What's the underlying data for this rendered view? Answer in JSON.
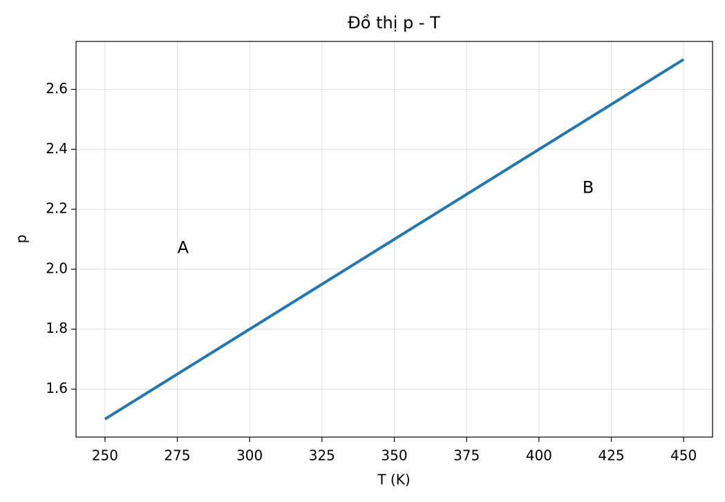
{
  "chart_data": {
    "type": "line",
    "title": "Đồ thị p - T",
    "xlabel": "T (K)",
    "ylabel": "p",
    "x": [
      250,
      450
    ],
    "series": [
      {
        "name": "p",
        "color": "#1f77b4",
        "values": [
          1.5,
          2.7
        ]
      }
    ],
    "xlim": [
      240,
      460
    ],
    "xticks": [
      250,
      275,
      300,
      325,
      350,
      375,
      400,
      425,
      450
    ],
    "ylim": [
      1.44,
      2.76
    ],
    "yticks": [
      {
        "value": 1.6,
        "label": "1.6"
      },
      {
        "value": 1.8,
        "label": "1.8"
      },
      {
        "value": 2.0,
        "label": "2.0"
      },
      {
        "value": 2.2,
        "label": "2.2"
      },
      {
        "value": 2.4,
        "label": "2.4"
      },
      {
        "value": 2.6,
        "label": "2.6"
      }
    ],
    "grid": true,
    "annotations": [
      {
        "text": "A",
        "x": 277,
        "y": 2.07
      },
      {
        "text": "B",
        "x": 417,
        "y": 2.27
      }
    ]
  }
}
